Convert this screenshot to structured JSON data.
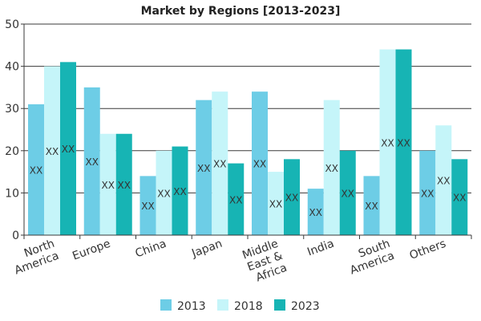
{
  "chart_data": {
    "type": "bar",
    "title": "Market by Regions [2013-2023]",
    "categories": [
      "North America",
      "Europe",
      "China",
      "Japan",
      "Middle East & Africa",
      "India",
      "South America",
      "Others"
    ],
    "category_lines": [
      [
        "North",
        "America"
      ],
      [
        "Europe"
      ],
      [
        "China"
      ],
      [
        "Japan"
      ],
      [
        "Middle",
        "East &",
        "Africa"
      ],
      [
        "India"
      ],
      [
        "South",
        "America"
      ],
      [
        "Others"
      ]
    ],
    "series": [
      {
        "name": "2013",
        "color": "#6dcde6",
        "values": [
          31,
          35,
          14,
          32,
          34,
          11,
          14,
          20
        ]
      },
      {
        "name": "2018",
        "color": "#c5f5f9",
        "values": [
          40,
          24,
          20,
          34,
          15,
          32,
          44,
          26
        ]
      },
      {
        "name": "2023",
        "color": "#17b4b4",
        "values": [
          41,
          24,
          21,
          17,
          18,
          20,
          44,
          18
        ]
      }
    ],
    "data_label": "XX",
    "ylim": [
      0,
      50
    ],
    "yticks": [
      0,
      10,
      20,
      30,
      40,
      50
    ],
    "grid": true,
    "legend_position": "bottom",
    "xlabel": "",
    "ylabel": ""
  }
}
